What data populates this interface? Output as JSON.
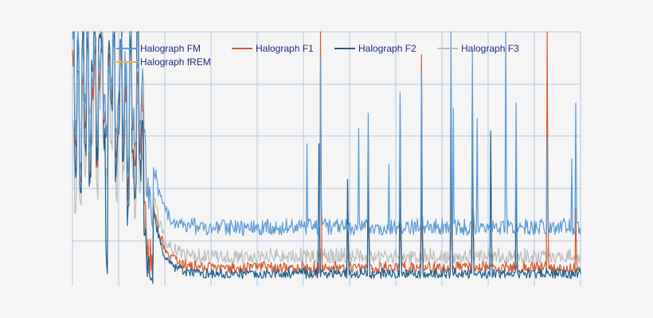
{
  "chart_data": {
    "type": "line",
    "title": "",
    "xlabel": "",
    "ylabel": "",
    "grid": true,
    "legend_position": "top-left",
    "series": [
      {
        "name": "Halograph FM",
        "color": "#5b9bd5",
        "noise": 0.055,
        "base": 0.2,
        "spikes": [
          [
            295,
            0.56
          ],
          [
            312,
            0.9
          ],
          [
            360,
            0.62
          ],
          [
            372,
            0.68
          ],
          [
            398,
            0.48
          ],
          [
            412,
            0.76
          ],
          [
            439,
            0.84
          ],
          [
            476,
            1.0
          ],
          [
            479,
            0.7
          ],
          [
            503,
            0.92
          ],
          [
            509,
            0.66
          ],
          [
            545,
            1.0
          ],
          [
            558,
            0.72
          ],
          [
            597,
            0.58
          ],
          [
            628,
            0.5
          ],
          [
            633,
            0.72
          ]
        ],
        "start": [
          0.95,
          0.6,
          0.98,
          0.48,
          0.9,
          0.7,
          0.99,
          0.55,
          0.85,
          0.92,
          0.6,
          0.88,
          0.99,
          0.72,
          0.65,
          0.9,
          0.8,
          0.99,
          0.58,
          0.75,
          0.95,
          0.65,
          0.85,
          0.45,
          0.99,
          0.7,
          0.5,
          0.9,
          0.6,
          0.8,
          0.55,
          0.42,
          0.35,
          0.3
        ]
      },
      {
        "name": "Halograph F1",
        "color": "#d9572b",
        "noise": 0.04,
        "base": 0.05,
        "spikes": [
          [
            312,
            1.0
          ],
          [
            346,
            0.4
          ],
          [
            372,
            0.57
          ],
          [
            412,
            0.72
          ],
          [
            439,
            0.91
          ],
          [
            476,
            0.72
          ],
          [
            503,
            0.71
          ],
          [
            597,
            1.0
          ],
          [
            633,
            0.31
          ]
        ],
        "start": [
          0.9,
          0.55,
          0.8,
          0.4,
          0.85,
          0.6,
          0.95,
          0.45,
          0.75,
          0.88,
          0.52,
          0.82,
          0.94,
          0.66,
          0.58,
          0.86,
          0.74,
          0.92,
          0.5,
          0.7,
          0.9,
          0.6,
          0.78,
          0.4,
          0.94,
          0.62,
          0.45,
          0.84,
          0.55,
          0.72,
          0.3,
          0.18,
          0.12,
          0.08
        ]
      },
      {
        "name": "Halograph F2",
        "color": "#1f5f8b",
        "noise": 0.035,
        "base": 0.03,
        "spikes": [
          [
            310,
            0.56
          ],
          [
            346,
            0.42
          ],
          [
            372,
            0.59
          ],
          [
            412,
            0.54
          ],
          [
            439,
            0.56
          ],
          [
            476,
            0.8
          ],
          [
            503,
            0.79
          ],
          [
            526,
            0.61
          ],
          [
            558,
            0.48
          ]
        ],
        "start": [
          0.99,
          0.45,
          0.92,
          0.35,
          0.99,
          0.55,
          0.98,
          0.4,
          0.85,
          0.99,
          0.48,
          0.92,
          0.99,
          0.6,
          0.11,
          0.95,
          0.7,
          0.99,
          0.45,
          0.65,
          0.99,
          0.55,
          0.88,
          0.3,
          0.99,
          0.5,
          0.35,
          0.98,
          0.45,
          0.62,
          0.2,
          0.1,
          0.06,
          0.04
        ]
      },
      {
        "name": "Halograph F3",
        "color": "#bdbdbd",
        "noise": 0.05,
        "base": 0.09,
        "spikes": [
          [
            372,
            0.45
          ],
          [
            412,
            0.4
          ],
          [
            476,
            0.35
          ],
          [
            503,
            0.3
          ]
        ],
        "start": [
          0.6,
          0.35,
          0.85,
          0.3,
          0.8,
          0.45,
          0.9,
          0.7,
          0.6,
          0.85,
          0.4,
          0.75,
          0.95,
          0.5,
          0.42,
          0.8,
          0.55,
          0.92,
          0.38,
          0.6,
          0.88,
          0.45,
          0.7,
          0.35,
          0.9,
          0.5,
          0.3,
          0.78,
          0.4,
          0.55,
          0.25,
          0.15,
          0.12,
          0.1
        ]
      },
      {
        "name": "Halograph fREM",
        "color": "#f2b632",
        "noise": 0.0,
        "base": 0.0,
        "spikes": [],
        "start": []
      }
    ]
  }
}
